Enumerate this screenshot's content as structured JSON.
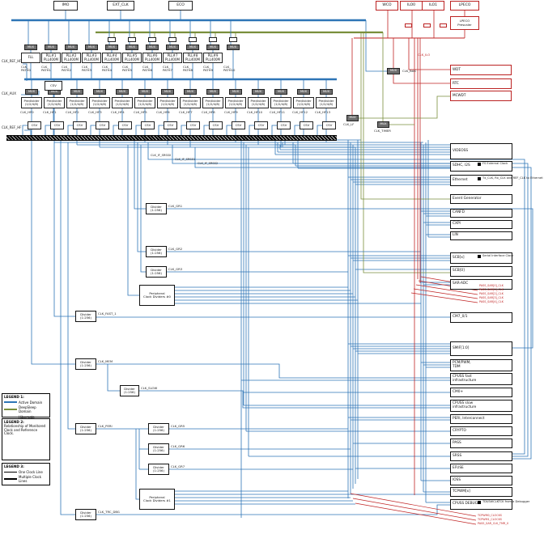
{
  "colors": {
    "active": "#2e75b6",
    "deepsleep": "#7a8f3c",
    "hibernate": "#c02424",
    "wire_dark": "#1a1a1a"
  },
  "sources_active": [
    "IMO",
    "EXT_CLK",
    "ECO"
  ],
  "sources_lp": [
    "WCO",
    "ILO0",
    "ILO1",
    "LPECO"
  ],
  "lpeco_prescaler": [
    "LPECO",
    "Prescaler"
  ],
  "mux_label": "MUX",
  "paths_row": {
    "blocks": [
      {
        "lines": [
          "FLL"
        ]
      },
      {
        "lines": [
          "PLL#1",
          "PLL400M"
        ]
      },
      {
        "lines": [
          "PLL#2",
          "PLL400M"
        ]
      },
      {
        "lines": [
          "PLL#3",
          "PLL400M"
        ]
      },
      {
        "lines": [
          "PLL#4",
          "PLL400M"
        ]
      },
      {
        "lines": [
          "PLL#5",
          "PLL400M"
        ]
      },
      {
        "lines": [
          "PLL#6",
          "PLL400M"
        ]
      },
      {
        "lines": [
          "PLL#7",
          "PLL400M"
        ]
      },
      {
        "lines": [
          "PLL#8",
          "PLL400M"
        ]
      },
      {
        "lines": [
          "PLL#9",
          "PLL400M"
        ]
      }
    ],
    "path_labels": [
      [
        "CLK_",
        "PATH0"
      ],
      [
        "CLK_",
        "PATH1"
      ],
      [
        "CLK_",
        "PATH2"
      ],
      [
        "CLK_",
        "PATH3"
      ],
      [
        "CLK_",
        "PATH4"
      ],
      [
        "CLK_",
        "PATH5"
      ],
      [
        "CLK_",
        "PATH6"
      ],
      [
        "CLK_",
        "PATH7"
      ],
      [
        "CLK_",
        "PATH8"
      ],
      [
        "CLK_",
        "PATH9"
      ],
      [
        "CLK_",
        "PATH10"
      ]
    ]
  },
  "hf_row": {
    "predivider": [
      "Predivider",
      "(1/2/4/8)"
    ],
    "csv": "CSV",
    "clocks": [
      "CLK_HF0",
      "CLK_HF1",
      "CLK_HF2",
      "CLK_HF3",
      "CLK_HF4",
      "CLK_HF5",
      "CLK_HF6",
      "CLK_HF7",
      "CLK_HF8",
      "CLK_HF9",
      "CLK_HF10",
      "CLK_HF11",
      "CLK_HF12",
      "CLK_HF13"
    ]
  },
  "left_labels": {
    "ref_top": "CLK_REF_HF",
    "aux": "CLK_AUX",
    "ref_bottom": "CLK_REF_HF",
    "csv": "CSV"
  },
  "cluster": {
    "clk_ilo": "CLK_ILO",
    "clk_bak": "CLK_BAK",
    "clk_lf": "CLK_LF",
    "clk_timer": "CLK_TIMER"
  },
  "wdt_group": [
    "WDT",
    "RTC",
    "MCWDT"
  ],
  "srss_if": [
    "CLK_IF_SRSS0",
    "CLK_IF_SRSS1",
    "CLK_IF_SRSS2"
  ],
  "mid_dividers": {
    "divider_lines": [
      "Divider",
      "(1:256)"
    ],
    "labels": [
      "CLK_GR1",
      "CLK_GR2",
      "CLK_GR3"
    ]
  },
  "peri_group_labels": [
    "CLK_GR5",
    "CLK_GR6",
    "CLK_GR7"
  ],
  "left_chain": {
    "divider_lines": [
      "Divider",
      "(1:256)"
    ],
    "labels": [
      "CLK_FAST_1",
      "CLK_MEM",
      "CLK_SLOW",
      "CLK_PERI",
      "CLK_TRC_DBG"
    ]
  },
  "peri_blocks": [
    [
      "Peripheral",
      "Clock Dividers #0"
    ],
    [
      "Peripheral",
      "Clock Dividers #1"
    ]
  ],
  "consumers": [
    {
      "lines": [
        "VIDEOSS"
      ]
    },
    {
      "lines": [
        "SDHC, I2S"
      ],
      "note": "FS External Clock"
    },
    {
      "lines": [
        "Ethernet"
      ],
      "note": "Tx_CLK, Rx_CLK and REF_CLK to Ethernet PHY, TSU"
    },
    {
      "lines": [
        "Event Generator"
      ]
    },
    {
      "lines": [
        "CANFD"
      ]
    },
    {
      "lines": [
        "CXPI"
      ]
    },
    {
      "lines": [
        "LIN"
      ]
    },
    {
      "lines": [
        "SCB[x]"
      ],
      "note": "Serial Interface Clock"
    },
    {
      "lines": [
        "SCB[0]"
      ]
    },
    {
      "lines": [
        "SAR-ADC"
      ]
    },
    {
      "lines": [
        "CM7_0/1"
      ]
    },
    {
      "lines": [
        "SMIF[1:0]"
      ]
    },
    {
      "lines": [
        "PCM/PWM,",
        "TDM"
      ]
    },
    {
      "lines": [
        "CPUSS fast",
        "infrastructure"
      ]
    },
    {
      "lines": [
        "CM0+"
      ]
    },
    {
      "lines": [
        "CPUSS slow",
        "infrastructure"
      ]
    },
    {
      "lines": [
        "PERI, Interconnect"
      ]
    },
    {
      "lines": [
        "CRYPTO"
      ]
    },
    {
      "lines": [
        "PASS"
      ]
    },
    {
      "lines": [
        "SRSS"
      ]
    },
    {
      "lines": [
        "EFUSE"
      ]
    },
    {
      "lines": [
        "IOSS"
      ]
    },
    {
      "lines": [
        "TCPWM[x]"
      ]
    },
    {
      "lines": [
        "CPUSS DEBUG"
      ],
      "note": "TDI/SWCLKTCK from a Debugger"
    }
  ],
  "fan1": [
    "PASS_SAR[0]_CLK",
    "PASS_SAR[1]_CLK",
    "PASS_SAR[2]_CLK",
    "PASS_SAR[3]_CLK",
    "PASS_SAR[4]_CLK"
  ],
  "fan2": [
    "TCPWM0_CLOCKS",
    "TCPWM1_CLOCKS",
    "PASS_SAR_CLK_TMR_0"
  ],
  "legends": {
    "l1": {
      "title": "LEGEND 1:",
      "items": [
        {
          "label": "Active Domain"
        },
        {
          "label": "DeepSleep Domain"
        },
        {
          "label": "Hibernate Domain"
        }
      ]
    },
    "l2": {
      "title": "LEGEND 2:",
      "desc": "Relationship of Monitored Clock and Reference Clock.",
      "monitored": "Monitored Clock",
      "reference": "Reference Clock",
      "csv": "CSV"
    },
    "l3": {
      "title": "LEGEND 3:",
      "items": [
        "One Clock Line",
        "Multiple Clock Lines"
      ]
    }
  }
}
